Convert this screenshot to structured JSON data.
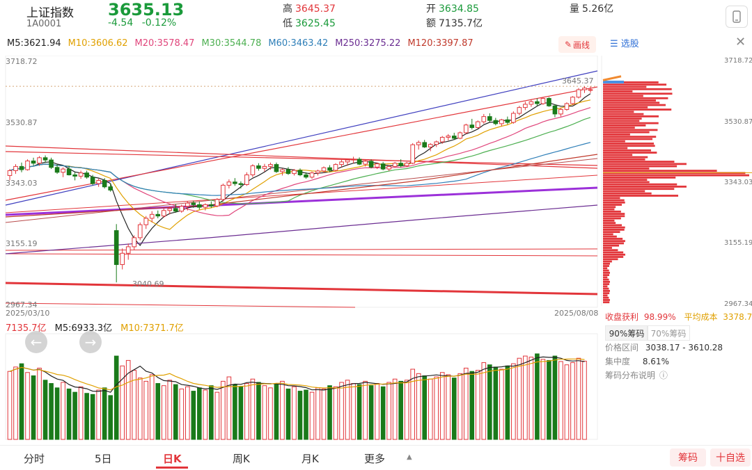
{
  "header": {
    "name": "上证指数",
    "code": "1A0001",
    "price": "3635.13",
    "change": "-4.54",
    "change_pct": "-0.12%",
    "high_label": "高",
    "high": "3645.37",
    "low_label": "低",
    "low": "3625.45",
    "open_label": "开",
    "open": "3634.85",
    "amount_label": "额",
    "amount": "7135.7亿",
    "volume_label": "量",
    "volume": "5.26亿"
  },
  "ma_line": [
    {
      "text": "M5:3621.94",
      "color": "#222222"
    },
    {
      "text": "M10:3606.62",
      "color": "#e0a000"
    },
    {
      "text": "M20:3578.47",
      "color": "#e0457b"
    },
    {
      "text": "M30:3544.78",
      "color": "#4caf50"
    },
    {
      "text": "M60:3463.42",
      "color": "#2f7fb8"
    },
    {
      "text": "M250:3275.22",
      "color": "#6a2c91"
    },
    {
      "text": "M120:3397.87",
      "color": "#c0392b"
    }
  ],
  "draw_button": "画线",
  "stock_pick": "选股",
  "price_axis": {
    "left": [
      "3718.72",
      "3530.87",
      "3343.03",
      "3155.19",
      "2967.34"
    ],
    "right": [
      "3718.72",
      "3530.87",
      "3343.03",
      "3155.19",
      "2967.34"
    ],
    "min": 2967.34,
    "max": 3718.72
  },
  "annotations": {
    "high_mark": "3645.37",
    "low_mark": "3040.69"
  },
  "date_start": "2025/03/10",
  "date_end": "2025/08/08",
  "volume_legend": {
    "total": "7135.7亿",
    "m5": "M5:6933.3亿",
    "m10": "M10:7371.7亿"
  },
  "chips": {
    "profit_label": "收盘获利",
    "profit": "98.99%",
    "avg_label": "平均成本",
    "avg": "3378.73",
    "tab_90": "90%筹码",
    "tab_70": "70%筹码",
    "range_label": "价格区间",
    "range": "3038.17 - 3610.28",
    "conc_label": "集中度",
    "conc": "8.61%",
    "help": "筹码分布说明"
  },
  "bottom_tabs": [
    "分时",
    "5日",
    "日K",
    "周K",
    "月K",
    "更多"
  ],
  "active_tab": "日K",
  "chips_button": "筹码",
  "add_watch": "十自选",
  "colors": {
    "up": "#e2353a",
    "down": "#1a7a1a",
    "accent": "#e2353a"
  },
  "chart_data": {
    "type": "candlestick",
    "start_date": "2025/03/10",
    "end_date": "2025/08/08",
    "ylim": [
      2967.34,
      3718.72
    ],
    "candles": [
      [
        3370,
        3390,
        3355,
        3385
      ],
      [
        3385,
        3405,
        3375,
        3398
      ],
      [
        3398,
        3410,
        3380,
        3388
      ],
      [
        3388,
        3420,
        3385,
        3415
      ],
      [
        3415,
        3425,
        3400,
        3408
      ],
      [
        3408,
        3430,
        3400,
        3425
      ],
      [
        3425,
        3432,
        3410,
        3418
      ],
      [
        3418,
        3425,
        3390,
        3395
      ],
      [
        3395,
        3405,
        3375,
        3380
      ],
      [
        3380,
        3395,
        3365,
        3390
      ],
      [
        3390,
        3400,
        3370,
        3372
      ],
      [
        3372,
        3380,
        3355,
        3368
      ],
      [
        3368,
        3385,
        3360,
        3378
      ],
      [
        3378,
        3385,
        3360,
        3365
      ],
      [
        3365,
        3372,
        3340,
        3345
      ],
      [
        3345,
        3360,
        3335,
        3355
      ],
      [
        3355,
        3362,
        3330,
        3335
      ],
      [
        3335,
        3345,
        3320,
        3325
      ],
      [
        3200,
        3220,
        3040,
        3095
      ],
      [
        3095,
        3145,
        3080,
        3130
      ],
      [
        3130,
        3160,
        3110,
        3150
      ],
      [
        3150,
        3185,
        3140,
        3178
      ],
      [
        3178,
        3225,
        3170,
        3218
      ],
      [
        3218,
        3245,
        3205,
        3238
      ],
      [
        3238,
        3260,
        3225,
        3250
      ],
      [
        3250,
        3262,
        3238,
        3245
      ],
      [
        3245,
        3268,
        3240,
        3262
      ],
      [
        3262,
        3275,
        3250,
        3268
      ],
      [
        3268,
        3282,
        3255,
        3260
      ],
      [
        3260,
        3280,
        3255,
        3275
      ],
      [
        3275,
        3290,
        3262,
        3285
      ],
      [
        3285,
        3292,
        3270,
        3280
      ],
      [
        3280,
        3290,
        3265,
        3272
      ],
      [
        3272,
        3284,
        3262,
        3280
      ],
      [
        3280,
        3290,
        3270,
        3276
      ],
      [
        3276,
        3300,
        3272,
        3296
      ],
      [
        3296,
        3345,
        3290,
        3340
      ],
      [
        3340,
        3358,
        3330,
        3350
      ],
      [
        3350,
        3362,
        3338,
        3345
      ],
      [
        3345,
        3352,
        3330,
        3342
      ],
      [
        3342,
        3380,
        3338,
        3372
      ],
      [
        3372,
        3405,
        3365,
        3400
      ],
      [
        3400,
        3408,
        3385,
        3392
      ],
      [
        3392,
        3406,
        3382,
        3398
      ],
      [
        3398,
        3410,
        3388,
        3404
      ],
      [
        3404,
        3410,
        3378,
        3382
      ],
      [
        3382,
        3392,
        3370,
        3388
      ],
      [
        3388,
        3396,
        3372,
        3376
      ],
      [
        3376,
        3390,
        3370,
        3386
      ],
      [
        3386,
        3392,
        3368,
        3372
      ],
      [
        3372,
        3380,
        3360,
        3365
      ],
      [
        3365,
        3382,
        3360,
        3378
      ],
      [
        3378,
        3388,
        3370,
        3384
      ],
      [
        3384,
        3398,
        3378,
        3394
      ],
      [
        3394,
        3402,
        3380,
        3386
      ],
      [
        3386,
        3408,
        3382,
        3404
      ],
      [
        3404,
        3418,
        3396,
        3412
      ],
      [
        3412,
        3422,
        3400,
        3418
      ],
      [
        3418,
        3428,
        3408,
        3420
      ],
      [
        3420,
        3426,
        3402,
        3405
      ],
      [
        3405,
        3418,
        3398,
        3414
      ],
      [
        3414,
        3420,
        3392,
        3396
      ],
      [
        3396,
        3410,
        3390,
        3406
      ],
      [
        3406,
        3412,
        3386,
        3390
      ],
      [
        3390,
        3402,
        3384,
        3398
      ],
      [
        3398,
        3412,
        3394,
        3408
      ],
      [
        3408,
        3420,
        3395,
        3400
      ],
      [
        3400,
        3412,
        3396,
        3408
      ],
      [
        3408,
        3470,
        3405,
        3465
      ],
      [
        3465,
        3478,
        3450,
        3472
      ],
      [
        3472,
        3480,
        3455,
        3458
      ],
      [
        3458,
        3470,
        3445,
        3466
      ],
      [
        3466,
        3478,
        3458,
        3474
      ],
      [
        3474,
        3492,
        3468,
        3488
      ],
      [
        3488,
        3498,
        3478,
        3492
      ],
      [
        3492,
        3502,
        3480,
        3485
      ],
      [
        3485,
        3506,
        3482,
        3502
      ],
      [
        3502,
        3530,
        3498,
        3526
      ],
      [
        3526,
        3545,
        3512,
        3518
      ],
      [
        3518,
        3540,
        3515,
        3536
      ],
      [
        3536,
        3560,
        3530,
        3552
      ],
      [
        3552,
        3562,
        3535,
        3540
      ],
      [
        3540,
        3548,
        3525,
        3530
      ],
      [
        3530,
        3545,
        3522,
        3542
      ],
      [
        3542,
        3552,
        3528,
        3534
      ],
      [
        3534,
        3568,
        3530,
        3562
      ],
      [
        3562,
        3585,
        3556,
        3580
      ],
      [
        3580,
        3598,
        3572,
        3590
      ],
      [
        3590,
        3605,
        3582,
        3598
      ],
      [
        3598,
        3608,
        3585,
        3592
      ],
      [
        3592,
        3612,
        3588,
        3608
      ],
      [
        3608,
        3612,
        3582,
        3585
      ],
      [
        3585,
        3590,
        3550,
        3560
      ],
      [
        3560,
        3578,
        3552,
        3574
      ],
      [
        3574,
        3596,
        3570,
        3592
      ],
      [
        3592,
        3615,
        3588,
        3612
      ],
      [
        3612,
        3640,
        3608,
        3635
      ],
      [
        3635,
        3645,
        3625,
        3640
      ],
      [
        3634.85,
        3645.37,
        3625.45,
        3635.13
      ]
    ],
    "volume": [
      6200,
      6600,
      6900,
      6100,
      5800,
      6500,
      5400,
      5100,
      4700,
      5200,
      4600,
      4300,
      4800,
      4200,
      4100,
      4500,
      4700,
      4000,
      7600,
      6700,
      7200,
      6300,
      5600,
      5300,
      5900,
      5100,
      4900,
      5400,
      5000,
      4600,
      4800,
      4400,
      4700,
      4500,
      4900,
      4300,
      5300,
      5700,
      5000,
      4800,
      5100,
      5500,
      5200,
      4900,
      4700,
      5000,
      5300,
      4600,
      4800,
      4400,
      4500,
      4300,
      4700,
      4600,
      4900,
      4800,
      5200,
      5400,
      5100,
      5000,
      5300,
      4900,
      5100,
      4800,
      5200,
      5500,
      5300,
      5400,
      6400,
      6000,
      5800,
      5500,
      5700,
      6100,
      5900,
      5600,
      6000,
      6500,
      6200,
      6300,
      7000,
      6800,
      6600,
      6400,
      6700,
      6900,
      7400,
      7600,
      7500,
      7800,
      7300,
      7200,
      7600,
      7100,
      6800,
      7000,
      7400,
      7135.7
    ],
    "volume_unit": "亿"
  }
}
